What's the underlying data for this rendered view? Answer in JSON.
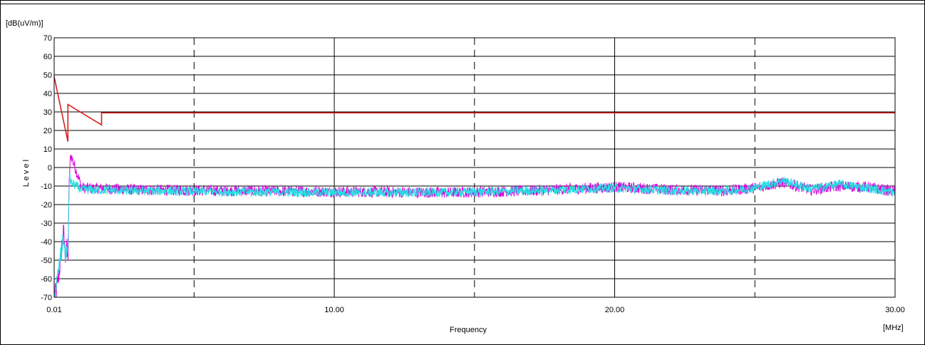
{
  "chart_data": {
    "type": "line",
    "ylabel_unit": "[dB(uV/m)]",
    "ylabel": "L e v e l",
    "xlabel": "Frequency",
    "xlabel_unit": "[MHz]",
    "xlim": [
      0.01,
      30.0
    ],
    "ylim": [
      -70,
      70
    ],
    "x_ticks": [
      "0.01",
      "10.00",
      "20.00",
      "30.00"
    ],
    "y_ticks": [
      "70",
      "60",
      "50",
      "40",
      "30",
      "20",
      "10",
      "0",
      "-10",
      "-20",
      "-30",
      "-40",
      "-50",
      "-60",
      "-70"
    ],
    "grid": true,
    "colors": {
      "limit": "#d42020",
      "trace1": "#dd00dd",
      "trace2": "#22e0e0",
      "trace_low": "#2a7de0"
    },
    "series": [
      {
        "role": "limit",
        "x": [
          0.01,
          0.5,
          0.5,
          1.7,
          1.7,
          30.0
        ],
        "y": [
          49,
          14,
          34,
          23,
          29.5,
          29.5
        ]
      },
      {
        "role": "trace1",
        "x": [
          0.01,
          0.1,
          0.2,
          0.3,
          0.35,
          0.4,
          0.45,
          0.5,
          0.55,
          0.6,
          1,
          3,
          6,
          10,
          14,
          17,
          20,
          22,
          24,
          25,
          26,
          27,
          28,
          29,
          30
        ],
        "y": [
          -70,
          -66,
          -55,
          -40,
          -35,
          -48,
          -40,
          -52,
          -5,
          7,
          -11,
          -12,
          -12.5,
          -13,
          -13.5,
          -12.5,
          -10.5,
          -12,
          -12.5,
          -11,
          -8,
          -12,
          -10,
          -10.5,
          -13
        ]
      },
      {
        "role": "trace2",
        "x": [
          0.01,
          0.1,
          0.2,
          0.3,
          0.35,
          0.4,
          0.45,
          0.5,
          0.55,
          0.6,
          1,
          3,
          6,
          10,
          14,
          17,
          20,
          22,
          24,
          25,
          26,
          27,
          28,
          29,
          30
        ],
        "y": [
          -70,
          -62,
          -52,
          -42,
          -38,
          -47,
          -44,
          -48,
          -4,
          -8,
          -12,
          -12.5,
          -13,
          -13.5,
          -13.5,
          -12.5,
          -11,
          -12.5,
          -12.5,
          -11,
          -7,
          -11.5,
          -9,
          -11,
          -13.5
        ]
      }
    ]
  }
}
